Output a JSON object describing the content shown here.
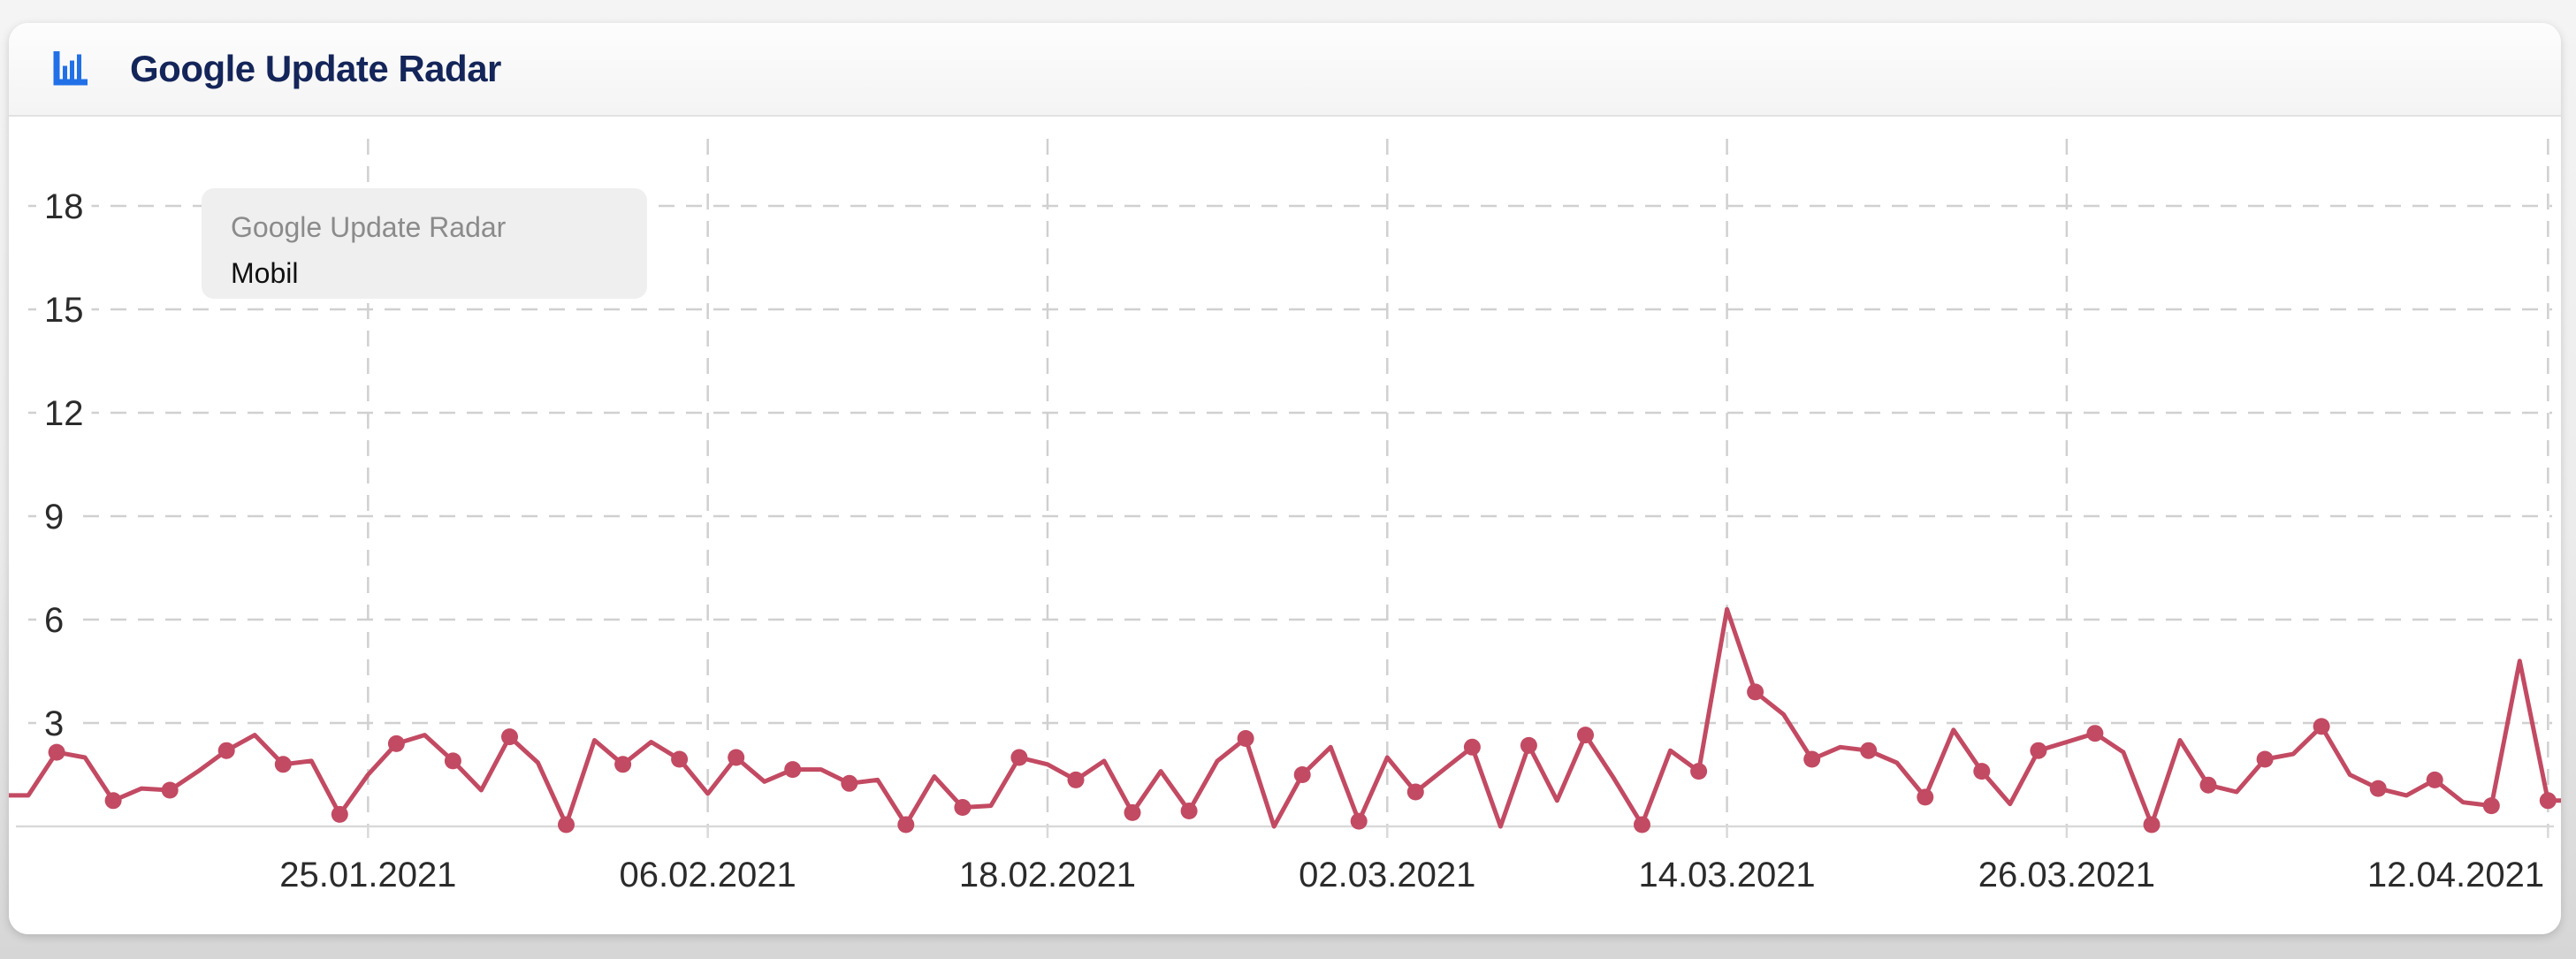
{
  "header": {
    "title": "Google Update Radar",
    "title_color": "#14255a",
    "icon": "bar-chart-icon",
    "icon_color": "#2170e8"
  },
  "tooltip": {
    "title": "Google Update Radar",
    "series_label": "Mobil"
  },
  "chart_data": {
    "type": "line",
    "title": "Google Update Radar",
    "x_start_date": "12.01.2021",
    "x_interval_days": 1,
    "series": [
      {
        "name": "Mobil",
        "color": "#c24a62",
        "values": [
          0.9,
          0.9,
          2.15,
          2.0,
          0.75,
          1.1,
          1.05,
          1.6,
          2.2,
          2.65,
          1.8,
          1.9,
          0.35,
          1.5,
          2.4,
          2.65,
          1.9,
          1.05,
          2.6,
          1.85,
          0.05,
          2.5,
          1.8,
          2.45,
          1.95,
          0.95,
          2.0,
          1.3,
          1.65,
          1.65,
          1.25,
          1.35,
          0.05,
          1.45,
          0.55,
          0.6,
          2.0,
          1.8,
          1.35,
          1.9,
          0.4,
          1.6,
          0.45,
          1.9,
          2.55,
          0.0,
          1.5,
          2.3,
          0.15,
          2.0,
          1.0,
          1.65,
          2.3,
          0.0,
          2.35,
          0.75,
          2.65,
          1.4,
          0.05,
          2.2,
          1.6,
          6.3,
          3.9,
          3.25,
          1.95,
          2.3,
          2.2,
          1.85,
          0.85,
          2.8,
          1.6,
          0.65,
          2.2,
          2.45,
          2.7,
          2.15,
          0.05,
          2.5,
          1.2,
          1.0,
          1.95,
          2.1,
          2.9,
          1.5,
          1.1,
          0.9,
          1.35,
          0.7,
          0.6,
          4.8,
          0.75,
          0.75
        ]
      }
    ],
    "x_tick_labels": [
      {
        "label": "25.01.2021",
        "index": 13
      },
      {
        "label": "06.02.2021",
        "index": 25
      },
      {
        "label": "18.02.2021",
        "index": 37
      },
      {
        "label": "02.03.2021",
        "index": 49
      },
      {
        "label": "14.03.2021",
        "index": 61
      },
      {
        "label": "26.03.2021",
        "index": 73
      },
      {
        "label": "12.04.2021",
        "index": 90
      }
    ],
    "y_ticks": [
      3,
      6,
      9,
      12,
      15,
      18
    ],
    "ylim": [
      0,
      20.6
    ],
    "grid": "dashed",
    "grid_color": "#d0d0d0",
    "axis_color": "#d9d9d9",
    "label_color": "#2b2b2b",
    "legend_position": "tooltip-overlay",
    "marker_every": 2,
    "marker_offset": 2
  }
}
